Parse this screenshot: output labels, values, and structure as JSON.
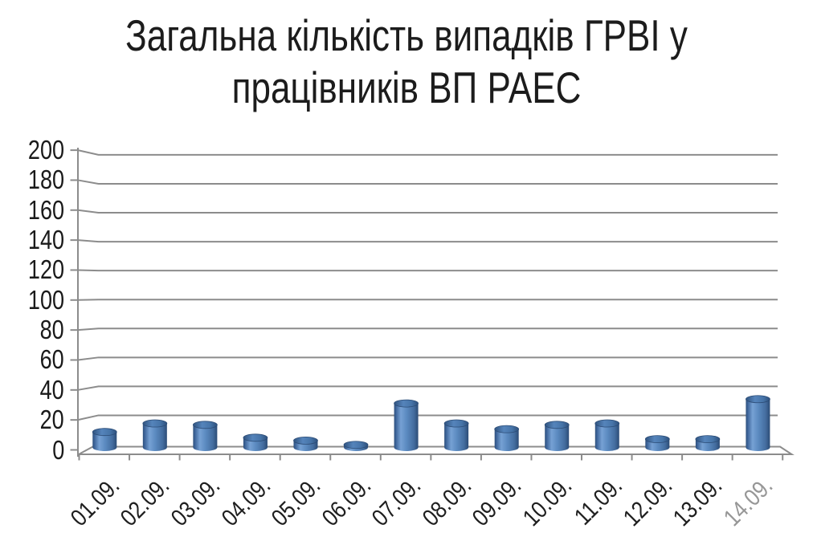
{
  "title": {
    "lines": [
      "Загальна кількість випадків ГРВІ у",
      "працівників ВП РАЕС"
    ]
  },
  "chart_data": {
    "type": "bar",
    "subtype": "3d-cylinder",
    "title": "Загальна кількість випадків ГРВІ у працівників ВП РАЕС",
    "categories": [
      "01.09.",
      "02.09.",
      "03.09.",
      "04.09.",
      "05.09.",
      "06.09.",
      "07.09.",
      "08.09.",
      "09.09.",
      "10.09.",
      "11.09.",
      "12.09.",
      "13.09.",
      "14.09."
    ],
    "values": [
      10,
      16,
      15,
      6,
      4,
      1,
      30,
      16,
      12,
      15,
      16,
      5,
      5,
      33
    ],
    "xlabel": "",
    "ylabel": "",
    "ylim": [
      0,
      200
    ],
    "ytick_step": 20,
    "ytick_labels": [
      "0",
      "20",
      "40",
      "60",
      "80",
      "100",
      "120",
      "140",
      "160",
      "180",
      "200"
    ],
    "grid": true,
    "legend": false,
    "x_labels_rotated_degrees": 45,
    "last_x_label_faded": true,
    "colors": {
      "bar_fill": "#4f81bd",
      "bar_edge_dark": "#2c4c76",
      "bar_highlight": "#76a1d4",
      "bar_top": "#4674a8",
      "grid_line": "#8c8c8c",
      "axis_text": "#1a1a1a",
      "title_text": "#1c1c1c",
      "faded_label": "#979797",
      "background": "#ffffff"
    }
  }
}
